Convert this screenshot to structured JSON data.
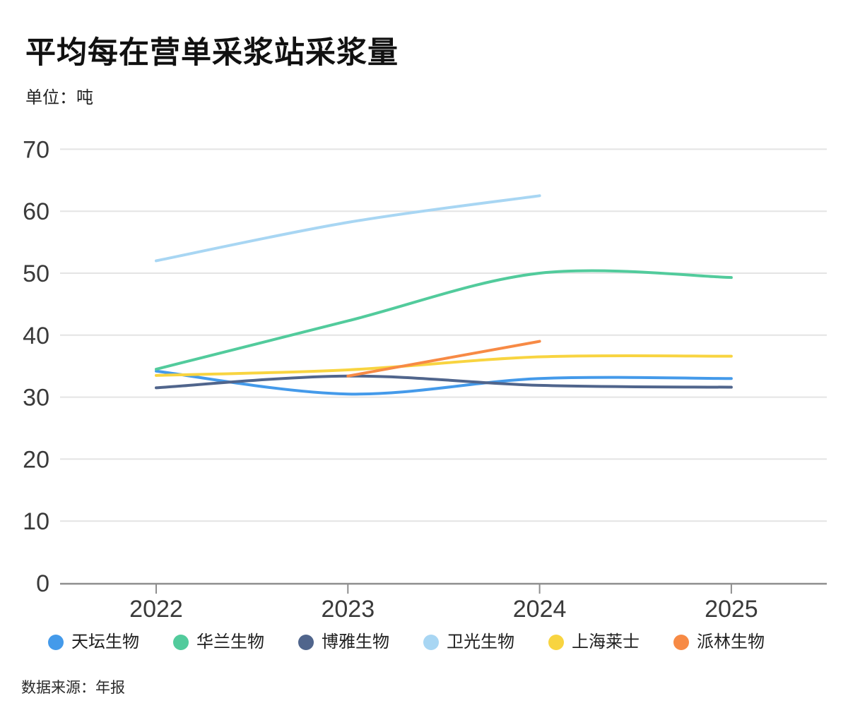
{
  "header": {
    "title": "平均每在营单采浆站采浆量",
    "unit_label": "单位：吨"
  },
  "footer": {
    "source": "数据来源：年报"
  },
  "chart_data": {
    "type": "line",
    "title": "平均每在营单采浆站采浆量",
    "ylabel": "吨",
    "x": [
      "2022",
      "2023",
      "2024",
      "2025"
    ],
    "series": [
      {
        "name": "天坛生物",
        "color": "#449AEA",
        "values": [
          34.2,
          30.5,
          33,
          33
        ]
      },
      {
        "name": "华兰生物",
        "color": "#52CB9C",
        "values": [
          34.5,
          42.3,
          50,
          49.3
        ]
      },
      {
        "name": "博雅生物",
        "color": "#50658C",
        "values": [
          31.5,
          33.4,
          31.9,
          31.6
        ]
      },
      {
        "name": "卫光生物",
        "color": "#A8D6F3",
        "values": [
          52,
          58.2,
          62.5,
          null
        ]
      },
      {
        "name": "上海莱士",
        "color": "#F8D440",
        "values": [
          33.5,
          34.4,
          36.5,
          36.6
        ]
      },
      {
        "name": "派林生物",
        "color": "#F78A45",
        "values": [
          null,
          33.4,
          39,
          null
        ]
      }
    ],
    "ylim": [
      0,
      70
    ],
    "yticks": [
      0,
      10,
      20,
      30,
      40,
      50,
      60,
      70
    ],
    "grid": true,
    "grid_color": "#e4e4e4",
    "axis_color": "#8e8e8e",
    "legend_position": "bottom"
  }
}
